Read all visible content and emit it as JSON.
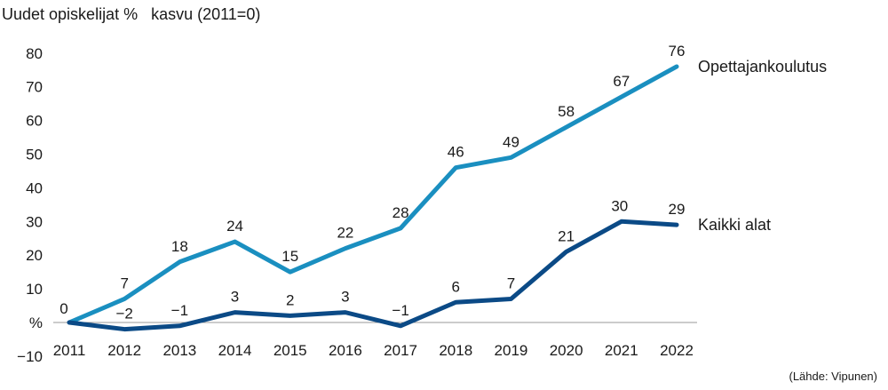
{
  "title": "Uudet opiskelijat %   kasvu (2011=0)",
  "source": "(Lähde: Vipunen)",
  "chart_data": {
    "type": "line",
    "title": "Uudet opiskelijat %   kasvu (2011=0)",
    "ylabel": "%",
    "xlabel": "",
    "ylim": [
      -10,
      80
    ],
    "ytick_labels": [
      "−10",
      "%",
      "10",
      "20",
      "30",
      "40",
      "50",
      "60",
      "70",
      "80"
    ],
    "ytick_values": [
      -10,
      0,
      10,
      20,
      30,
      40,
      50,
      60,
      70,
      80
    ],
    "categories": [
      "2011",
      "2012",
      "2013",
      "2014",
      "2015",
      "2016",
      "2017",
      "2018",
      "2019",
      "2020",
      "2021",
      "2022"
    ],
    "grid": false,
    "series": [
      {
        "name": "Opettajankoulutus",
        "color": "#1a8fc0",
        "values": [
          0,
          7,
          18,
          24,
          15,
          22,
          28,
          46,
          49,
          58,
          67,
          76
        ],
        "labels": [
          "0",
          "7",
          "18",
          "24",
          "15",
          "22",
          "28",
          "46",
          "49",
          "58",
          "67",
          "76"
        ]
      },
      {
        "name": "Kaikki alat",
        "color": "#0b4a86",
        "values": [
          0,
          -2,
          -1,
          3,
          2,
          3,
          -1,
          6,
          7,
          21,
          30,
          29
        ],
        "labels": [
          "",
          "−2",
          "−1",
          "3",
          "2",
          "3",
          "−1",
          "6",
          "7",
          "21",
          "30",
          "29"
        ]
      }
    ]
  }
}
